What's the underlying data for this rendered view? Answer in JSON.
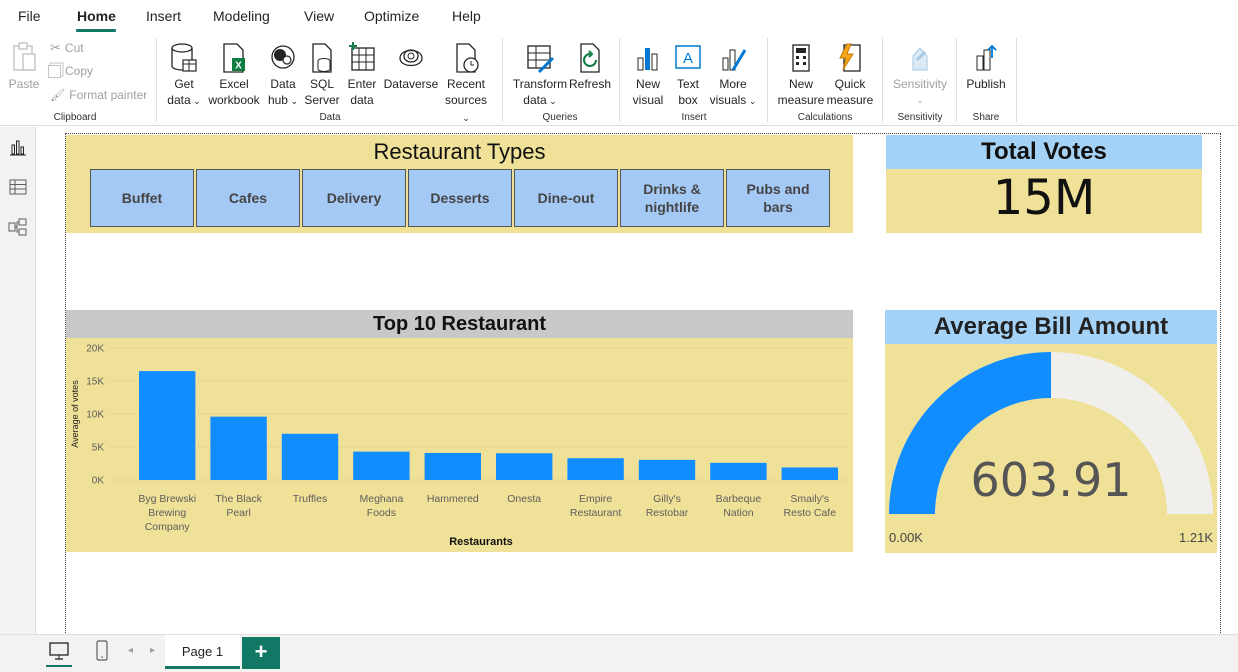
{
  "menu": {
    "items": [
      {
        "label": "File"
      },
      {
        "label": "Home"
      },
      {
        "label": "Insert"
      },
      {
        "label": "Modeling"
      },
      {
        "label": "View"
      },
      {
        "label": "Optimize"
      },
      {
        "label": "Help"
      }
    ]
  },
  "ribbon": {
    "clipboard": {
      "paste": "Paste",
      "cut": "Cut",
      "copy": "Copy",
      "format_painter": "Format painter",
      "group": "Clipboard"
    },
    "data": {
      "get_data": [
        "Get",
        "data"
      ],
      "excel": [
        "Excel",
        "workbook"
      ],
      "data_hub": [
        "Data",
        "hub"
      ],
      "sql": [
        "SQL",
        "Server"
      ],
      "enter_data": [
        "Enter",
        "data"
      ],
      "dataverse": "Dataverse",
      "recent": [
        "Recent",
        "sources"
      ],
      "group": "Data"
    },
    "queries": {
      "transform": [
        "Transform",
        "data"
      ],
      "refresh": "Refresh",
      "group": "Queries"
    },
    "insert": {
      "new_visual": [
        "New",
        "visual"
      ],
      "text_box": [
        "Text",
        "box"
      ],
      "more_visuals": [
        "More",
        "visuals"
      ],
      "group": "Insert"
    },
    "calculations": {
      "new_measure": [
        "New",
        "measure"
      ],
      "quick_measure": [
        "Quick",
        "measure"
      ],
      "group": "Calculations"
    },
    "sensitivity": {
      "label": "Sensitivity",
      "group": "Sensitivity"
    },
    "share": {
      "publish": "Publish",
      "group": "Share"
    }
  },
  "types_visual": {
    "title": "Restaurant Types",
    "buttons": [
      "Buffet",
      "Cafes",
      "Delivery",
      "Desserts",
      "Dine-out",
      "Drinks &\nnightlife",
      "Pubs and\nbars"
    ]
  },
  "votes_visual": {
    "title": "Total Votes",
    "value": "15M"
  },
  "top10_visual": {
    "title": "Top 10 Restaurant"
  },
  "chart_data": {
    "type": "bar",
    "title": "Top 10 Restaurant",
    "xlabel": "Restaurants",
    "ylabel": "Average of votes",
    "categories": [
      [
        "Byg Brewski",
        "Brewing",
        "Company"
      ],
      [
        "The Black",
        "Pearl"
      ],
      [
        "Truffles"
      ],
      [
        "Meghana",
        "Foods"
      ],
      [
        "Hammered"
      ],
      [
        "Onesta"
      ],
      [
        "Empire",
        "Restaurant"
      ],
      [
        "Gilly's",
        "Restobar"
      ],
      [
        "Barbeque",
        "Nation"
      ],
      [
        "Smaily's",
        "Resto Cafe"
      ]
    ],
    "values": [
      16500,
      9600,
      7000,
      4300,
      4100,
      4050,
      3300,
      3050,
      2600,
      1900
    ],
    "ylim": [
      0,
      20000
    ],
    "yticks": [
      {
        "v": 0,
        "label": "0K"
      },
      {
        "v": 5000,
        "label": "5K"
      },
      {
        "v": 10000,
        "label": "10K"
      },
      {
        "v": 15000,
        "label": "15K"
      },
      {
        "v": 20000,
        "label": "20K"
      }
    ],
    "bar_color": "#118dff",
    "grid": true
  },
  "avg_visual": {
    "title": "Average Bill Amount",
    "value_label": "603.91",
    "value": 603.91,
    "min_label": "0.00K",
    "max_label": "1.21K",
    "min": 0,
    "max": 1207.82,
    "fill_color": "#118dff",
    "track_color": "#f1efec"
  },
  "bottom": {
    "page_tab": "Page 1",
    "add_page": "+"
  },
  "colors": {
    "accent": "#117865",
    "panel": "#f0e199",
    "header_blue": "#a5d3f7",
    "button_blue": "#a5c9f5"
  }
}
